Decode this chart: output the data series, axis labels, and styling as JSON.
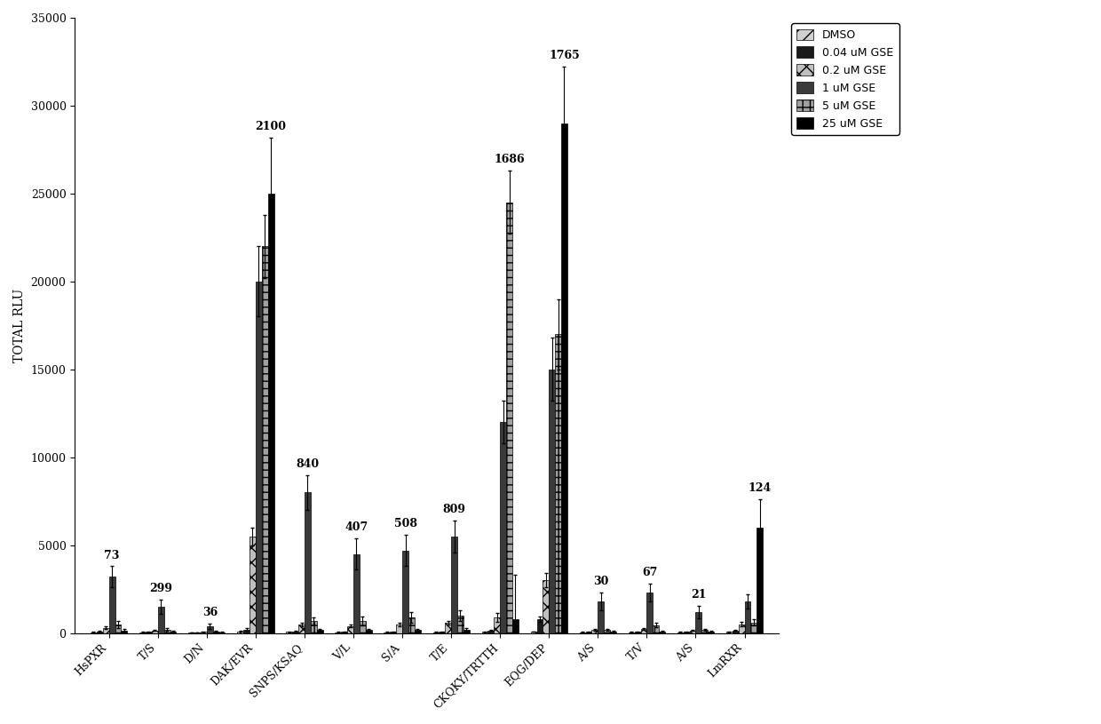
{
  "categories": [
    "HsPXR",
    "T/S",
    "D/N",
    "DAK/EVR",
    "SNPS/KSAQ",
    "V/L",
    "S/A",
    "T/E",
    "CKQKY/TRTTH",
    "EQG/DEP",
    "A/S",
    "T/V",
    "A/S",
    "LmRXR"
  ],
  "series_labels": [
    "DMSO",
    "0.04 uM GSE",
    "0.2 uM GSE",
    "1 uM GSE",
    "5 uM GSE",
    "25 uM GSE"
  ],
  "ylabel": "TOTAL RLU",
  "ylim": [
    0,
    35000
  ],
  "yticks": [
    0,
    5000,
    10000,
    15000,
    20000,
    25000,
    30000,
    35000
  ],
  "figsize": [
    12.4,
    8.15
  ],
  "dpi": 100,
  "fold_labels": [
    73,
    299,
    36,
    2100,
    840,
    407,
    508,
    809,
    1686,
    1765,
    30,
    67,
    21,
    124
  ],
  "vals": [
    [
      50,
      80,
      300,
      3200,
      500,
      150
    ],
    [
      50,
      60,
      150,
      1500,
      200,
      80
    ],
    [
      30,
      40,
      80,
      400,
      100,
      50
    ],
    [
      100,
      200,
      5500,
      20000,
      22000,
      25000
    ],
    [
      60,
      100,
      500,
      8000,
      700,
      200
    ],
    [
      50,
      80,
      400,
      4500,
      700,
      200
    ],
    [
      50,
      80,
      500,
      4700,
      900,
      200
    ],
    [
      50,
      80,
      600,
      5500,
      1000,
      200
    ],
    [
      60,
      150,
      900,
      12000,
      24500,
      800
    ],
    [
      80,
      800,
      3000,
      15000,
      17000,
      29000
    ],
    [
      50,
      80,
      200,
      1800,
      200,
      80
    ],
    [
      50,
      80,
      250,
      2300,
      450,
      100
    ],
    [
      50,
      60,
      150,
      1200,
      180,
      80
    ],
    [
      60,
      150,
      500,
      1800,
      600,
      6000
    ]
  ],
  "errs": [
    [
      15,
      30,
      80,
      600,
      200,
      80
    ],
    [
      15,
      20,
      40,
      400,
      80,
      40
    ],
    [
      10,
      15,
      25,
      150,
      40,
      25
    ],
    [
      25,
      80,
      500,
      2000,
      1800,
      3200
    ],
    [
      15,
      30,
      100,
      1000,
      200,
      60
    ],
    [
      15,
      25,
      80,
      900,
      250,
      60
    ],
    [
      15,
      25,
      90,
      900,
      300,
      60
    ],
    [
      15,
      25,
      100,
      900,
      300,
      70
    ],
    [
      15,
      40,
      250,
      1200,
      1800,
      2500
    ],
    [
      15,
      150,
      400,
      1800,
      2000,
      3200
    ],
    [
      15,
      25,
      50,
      500,
      60,
      30
    ],
    [
      15,
      25,
      60,
      500,
      130,
      50
    ],
    [
      15,
      20,
      40,
      350,
      55,
      30
    ],
    [
      15,
      40,
      120,
      400,
      180,
      1600
    ]
  ]
}
